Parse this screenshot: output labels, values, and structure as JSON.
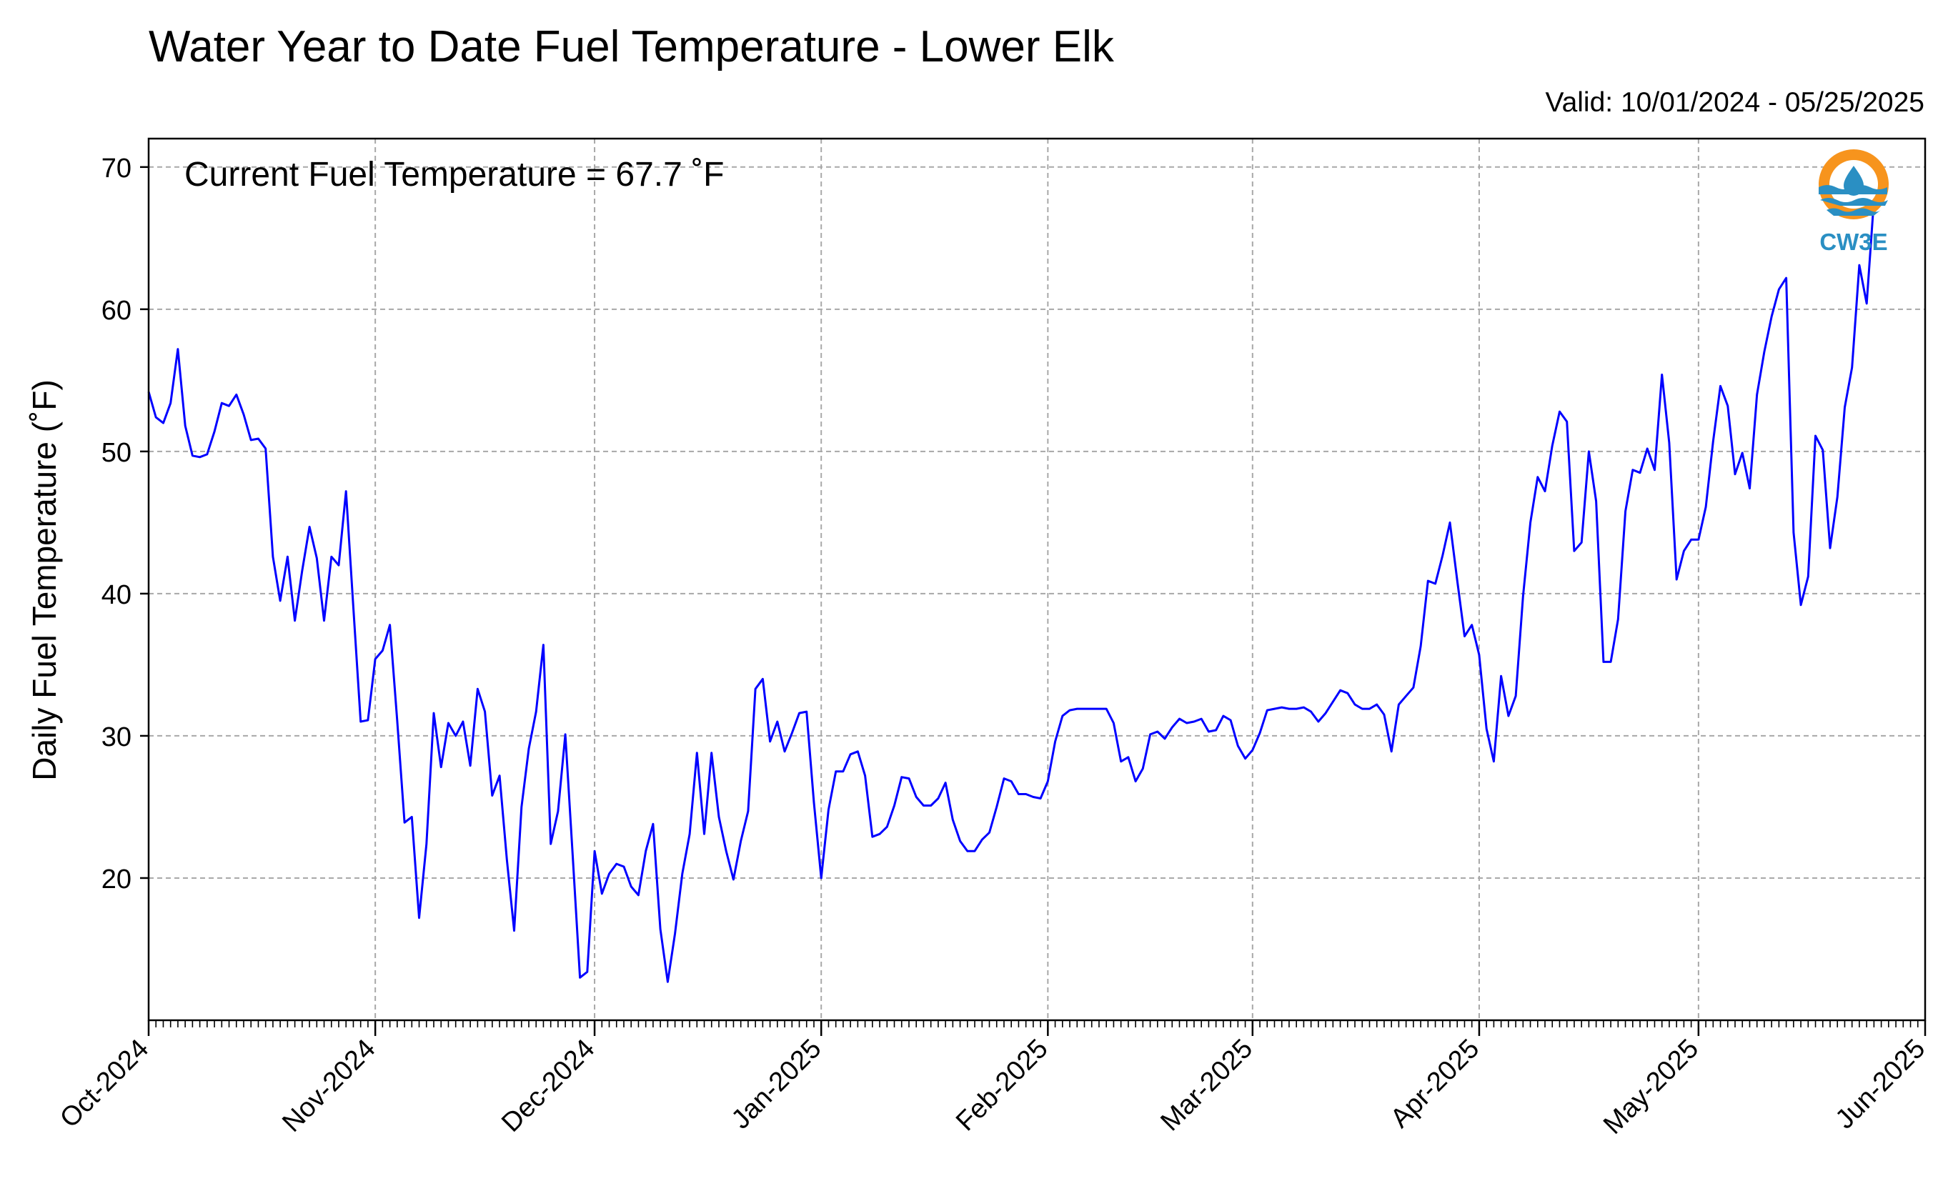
{
  "title": "Water Year to Date Fuel Temperature - Lower Elk",
  "valid_text": "Valid: 10/01/2024 - 05/25/2025",
  "annotation": "Current Fuel Temperature = 67.7 ˚F",
  "logo_text": "CW3E",
  "colors": {
    "line": "#0000ff",
    "grid": "#a8a8a8",
    "logo_orange": "#f7941d",
    "logo_blue": "#2a8fc3"
  },
  "chart_data": {
    "type": "line",
    "title": "Water Year to Date Fuel Temperature - Lower Elk",
    "xlabel": "",
    "ylabel": "Daily Fuel Temperature (˚F)",
    "x_start": "2024-10-01",
    "x_end": "2025-05-25",
    "xlim": [
      "2024-10-01",
      "2025-06-01"
    ],
    "ylim": [
      10,
      72
    ],
    "yticks": [
      20,
      30,
      40,
      50,
      60,
      70
    ],
    "xticks": [
      {
        "date": "2024-10-01",
        "label": "Oct-2024"
      },
      {
        "date": "2024-11-01",
        "label": "Nov-2024"
      },
      {
        "date": "2024-12-01",
        "label": "Dec-2024"
      },
      {
        "date": "2025-01-01",
        "label": "Jan-2025"
      },
      {
        "date": "2025-02-01",
        "label": "Feb-2025"
      },
      {
        "date": "2025-03-01",
        "label": "Mar-2025"
      },
      {
        "date": "2025-04-01",
        "label": "Apr-2025"
      },
      {
        "date": "2025-05-01",
        "label": "May-2025"
      },
      {
        "date": "2025-06-01",
        "label": "Jun-2025"
      }
    ],
    "grid": true,
    "series": [
      {
        "values": [
          54.2,
          52.4,
          52.0,
          53.4,
          57.2,
          51.8,
          49.7,
          49.6,
          49.8,
          51.4,
          53.4,
          53.2,
          54.0,
          52.6,
          50.8,
          50.9,
          50.2,
          42.6,
          39.5,
          42.6,
          38.1,
          41.6,
          44.7,
          42.5,
          38.1,
          42.6,
          42.0,
          47.2,
          39.0,
          31.0,
          31.1,
          35.4,
          36.0,
          37.8,
          31.1,
          23.9,
          24.3,
          17.2,
          22.4,
          31.6,
          27.8,
          30.9,
          30.0,
          31.0,
          27.9,
          33.3,
          31.7,
          25.8,
          27.2,
          21.3,
          16.3,
          25.0,
          29.1,
          31.7,
          36.4,
          22.4,
          24.7,
          30.1,
          21.6,
          13.0,
          13.4,
          21.9,
          18.9,
          20.3,
          21.0,
          20.8,
          19.4,
          18.8,
          21.9,
          23.8,
          16.4,
          12.7,
          16.1,
          20.3,
          23.1,
          28.8,
          23.1,
          28.8,
          24.3,
          21.9,
          19.9,
          22.6,
          24.7,
          33.3,
          34.0,
          29.6,
          31.0,
          28.9,
          30.2,
          31.6,
          31.7,
          25.3,
          20.0,
          24.8,
          27.5,
          27.5,
          28.7,
          28.9,
          27.2,
          22.9,
          23.1,
          23.6,
          25.1,
          27.1,
          27.0,
          25.7,
          25.1,
          25.1,
          25.6,
          26.7,
          24.1,
          22.6,
          21.9,
          21.9,
          22.7,
          23.2,
          25.0,
          27.0,
          26.8,
          25.9,
          25.9,
          25.7,
          25.6,
          26.8,
          29.6,
          31.4,
          31.8,
          31.9,
          31.9,
          31.9,
          31.9,
          31.9,
          30.9,
          28.2,
          28.5,
          26.8,
          27.7,
          30.1,
          30.3,
          29.8,
          30.6,
          31.2,
          30.9,
          31.0,
          31.2,
          30.3,
          30.4,
          31.4,
          31.1,
          29.3,
          28.4,
          29.0,
          30.2,
          31.8,
          31.9,
          32.0,
          31.9,
          31.9,
          32.0,
          31.7,
          31.0,
          31.6,
          32.4,
          33.2,
          33.0,
          32.2,
          31.9,
          31.9,
          32.2,
          31.5,
          28.9,
          32.2,
          32.8,
          33.4,
          36.3,
          40.9,
          40.7,
          42.7,
          45.0,
          40.9,
          37.0,
          37.8,
          35.7,
          30.5,
          28.2,
          34.2,
          31.4,
          32.8,
          39.8,
          45.0,
          48.2,
          47.2,
          50.4,
          52.8,
          52.1,
          43.0,
          43.6,
          50.0,
          46.5,
          35.2,
          35.2,
          38.2,
          45.8,
          48.7,
          48.5,
          50.2,
          48.7,
          55.4,
          50.6,
          41.0,
          43.0,
          43.8,
          43.8,
          46.1,
          50.7,
          54.6,
          53.2,
          48.4,
          49.9,
          47.4,
          54.0,
          57.0,
          59.5,
          61.4,
          62.2,
          44.3,
          39.2,
          41.2,
          51.1,
          50.1,
          43.2,
          46.8,
          53.1,
          55.9,
          63.1,
          60.4,
          67.7
        ]
      }
    ]
  }
}
